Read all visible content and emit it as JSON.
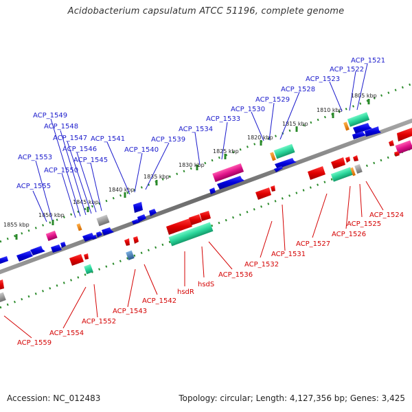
{
  "title": "Acidobacterium capsulatum ATCC 51196, complete genome",
  "accession": "Accession: NC_012483",
  "topology": "Topology: circular; Length: 4,127,356 bp; Genes: 3,425",
  "colors": {
    "forward_label": "#1a1acc",
    "reverse_label": "#d40000",
    "backbone": "#7a7a7a",
    "ticks": "#2a8a2a"
  },
  "scale_ticks": [
    "1805 kbp",
    "1810 kbp",
    "1815 kbp",
    "1820 kbp",
    "1825 kbp",
    "1830 kbp",
    "1835 kbp",
    "1840 kbp",
    "1845 kbp",
    "1850 kbp",
    "1855 kbp"
  ],
  "forward_labels": [
    "ACP_1521",
    "ACP_1522",
    "ACP_1523",
    "ACP_1528",
    "ACP_1529",
    "ACP_1530",
    "ACP_1533",
    "ACP_1534",
    "ACP_1539",
    "ACP_1540",
    "ACP_1541",
    "ACP_1545",
    "ACP_1546",
    "ACP_1547",
    "ACP_1548",
    "ACP_1549",
    "ACP_1550",
    "ACP_1553",
    "ACP_1555"
  ],
  "reverse_labels": [
    "ACP_1524",
    "ACP_1525",
    "ACP_1526",
    "ACP_1527",
    "ACP_1531",
    "ACP_1532",
    "ACP_1536",
    "hsdS",
    "hsdR",
    "ACP_1542",
    "ACP_1543",
    "ACP_1552",
    "ACP_1554",
    "ACP_1559"
  ]
}
